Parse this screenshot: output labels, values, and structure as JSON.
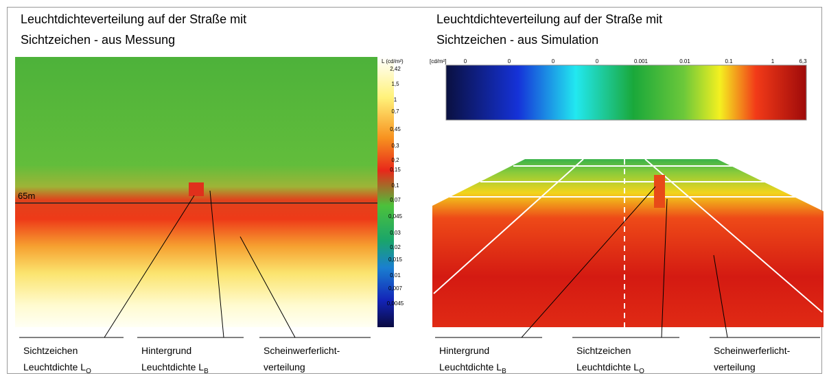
{
  "left": {
    "title": [
      "Leuchtdichteverteilung auf der Straße mit",
      "Sichtzeichen -  aus Messung"
    ],
    "colorbar": {
      "unit": "L (cd/m²)",
      "labels": [
        "2,42",
        "1,5",
        "1",
        "0,7",
        "0,45",
        "0,3",
        "0,2",
        "0,15",
        "0,1",
        "0,07",
        "0,045",
        "0,03",
        "0,02",
        "0,015",
        "0,01",
        "0,007",
        "0,0045"
      ]
    },
    "distance": "65m",
    "annotations": [
      {
        "line1": "Sichtzeichen",
        "line2": "Leuchtdichte L",
        "sub": "O"
      },
      {
        "line1": "Hintergrund",
        "line2": "Leuchtdichte L",
        "sub": "B"
      },
      {
        "line1": "Scheinwerferlicht-",
        "line2": "verteilung"
      }
    ]
  },
  "right": {
    "title": [
      "Leuchtdichteverteilung auf der Straße mit",
      "Sichtzeichen -  aus Simulation"
    ],
    "colorbar": {
      "unit": "[cd/m²]",
      "labels": [
        "0",
        "0",
        "0",
        "0",
        "0.001",
        "0.01",
        "0.1",
        "1",
        "6,3"
      ]
    },
    "annotations": [
      {
        "line1": "Hintergrund",
        "line2": "Leuchtdichte L",
        "sub": "B"
      },
      {
        "line1": "Sichtzeichen",
        "line2": "Leuchtdichte L",
        "sub": "O"
      },
      {
        "line1": "Scheinwerferlicht-",
        "line2": "verteilung"
      }
    ]
  }
}
